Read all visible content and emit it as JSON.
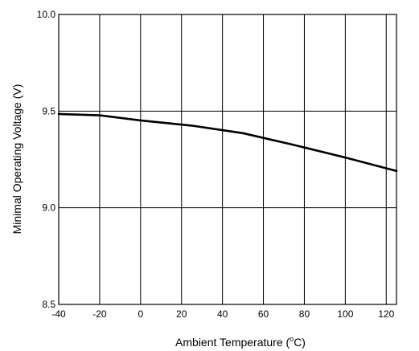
{
  "chart_data": {
    "type": "line",
    "xlabel_main": "Ambient Temperature (",
    "xlabel_unit_sup": "o",
    "xlabel_unit_tail": "C)",
    "ylabel": "Minimal Operating Voltage (V)",
    "xlim": [
      -40,
      125
    ],
    "ylim": [
      8.5,
      10.0
    ],
    "x_ticks": [
      -40,
      -20,
      0,
      20,
      40,
      60,
      80,
      100,
      120
    ],
    "x_tick_labels": [
      "-40",
      "-20",
      "0",
      "20",
      "40",
      "60",
      "80",
      "100",
      "120"
    ],
    "y_ticks": [
      8.5,
      9.0,
      9.5,
      10.0
    ],
    "y_tick_labels": [
      "8.5",
      "9.0",
      "9.5",
      "10.0"
    ],
    "grid": true,
    "series": [
      {
        "x": [
          -40,
          -20,
          0,
          25,
          50,
          75,
          100,
          125
        ],
        "y": [
          9.485,
          9.478,
          9.452,
          9.425,
          9.386,
          9.325,
          9.26,
          9.19
        ]
      }
    ]
  }
}
